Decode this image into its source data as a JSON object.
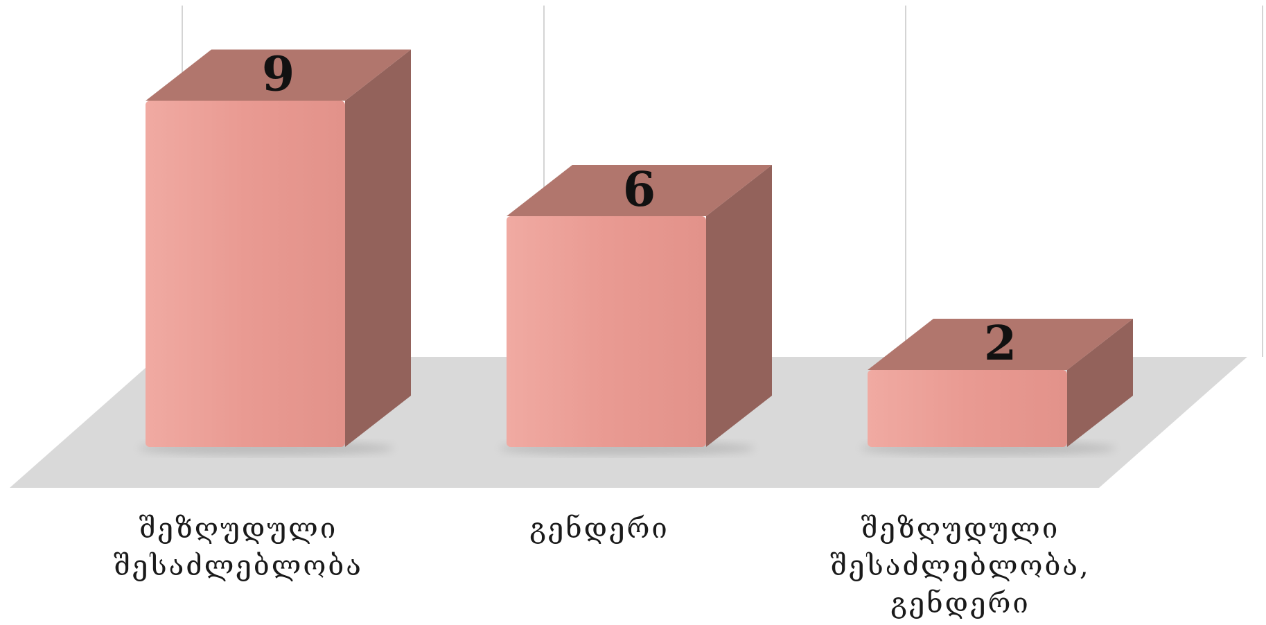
{
  "chart_data": {
    "type": "bar",
    "style": "3d",
    "categories": [
      "შეზღუდული შესაძლებლობა",
      "გენდერი",
      "შეზღუდული შესაძლებლობა, გენდერი"
    ],
    "category_lines": [
      [
        "შეზღუდული",
        "შესაძლებლობა"
      ],
      [
        "გენდერი"
      ],
      [
        "შეზღუდული",
        "შესაძლებლობა,",
        "გენდერი"
      ]
    ],
    "values": [
      9,
      6,
      2
    ],
    "value_labels": [
      "9",
      "6",
      "2"
    ],
    "title": "",
    "xlabel": "",
    "ylabel": "",
    "ylim": [
      0,
      9
    ],
    "grid": "vertical",
    "legend": "none",
    "colors": {
      "front": "#e99a92",
      "top": "#b1766d",
      "side": "#93625b",
      "floor": "#d9d9d9",
      "grid": "#d4d4d4",
      "label": "#111111"
    }
  }
}
